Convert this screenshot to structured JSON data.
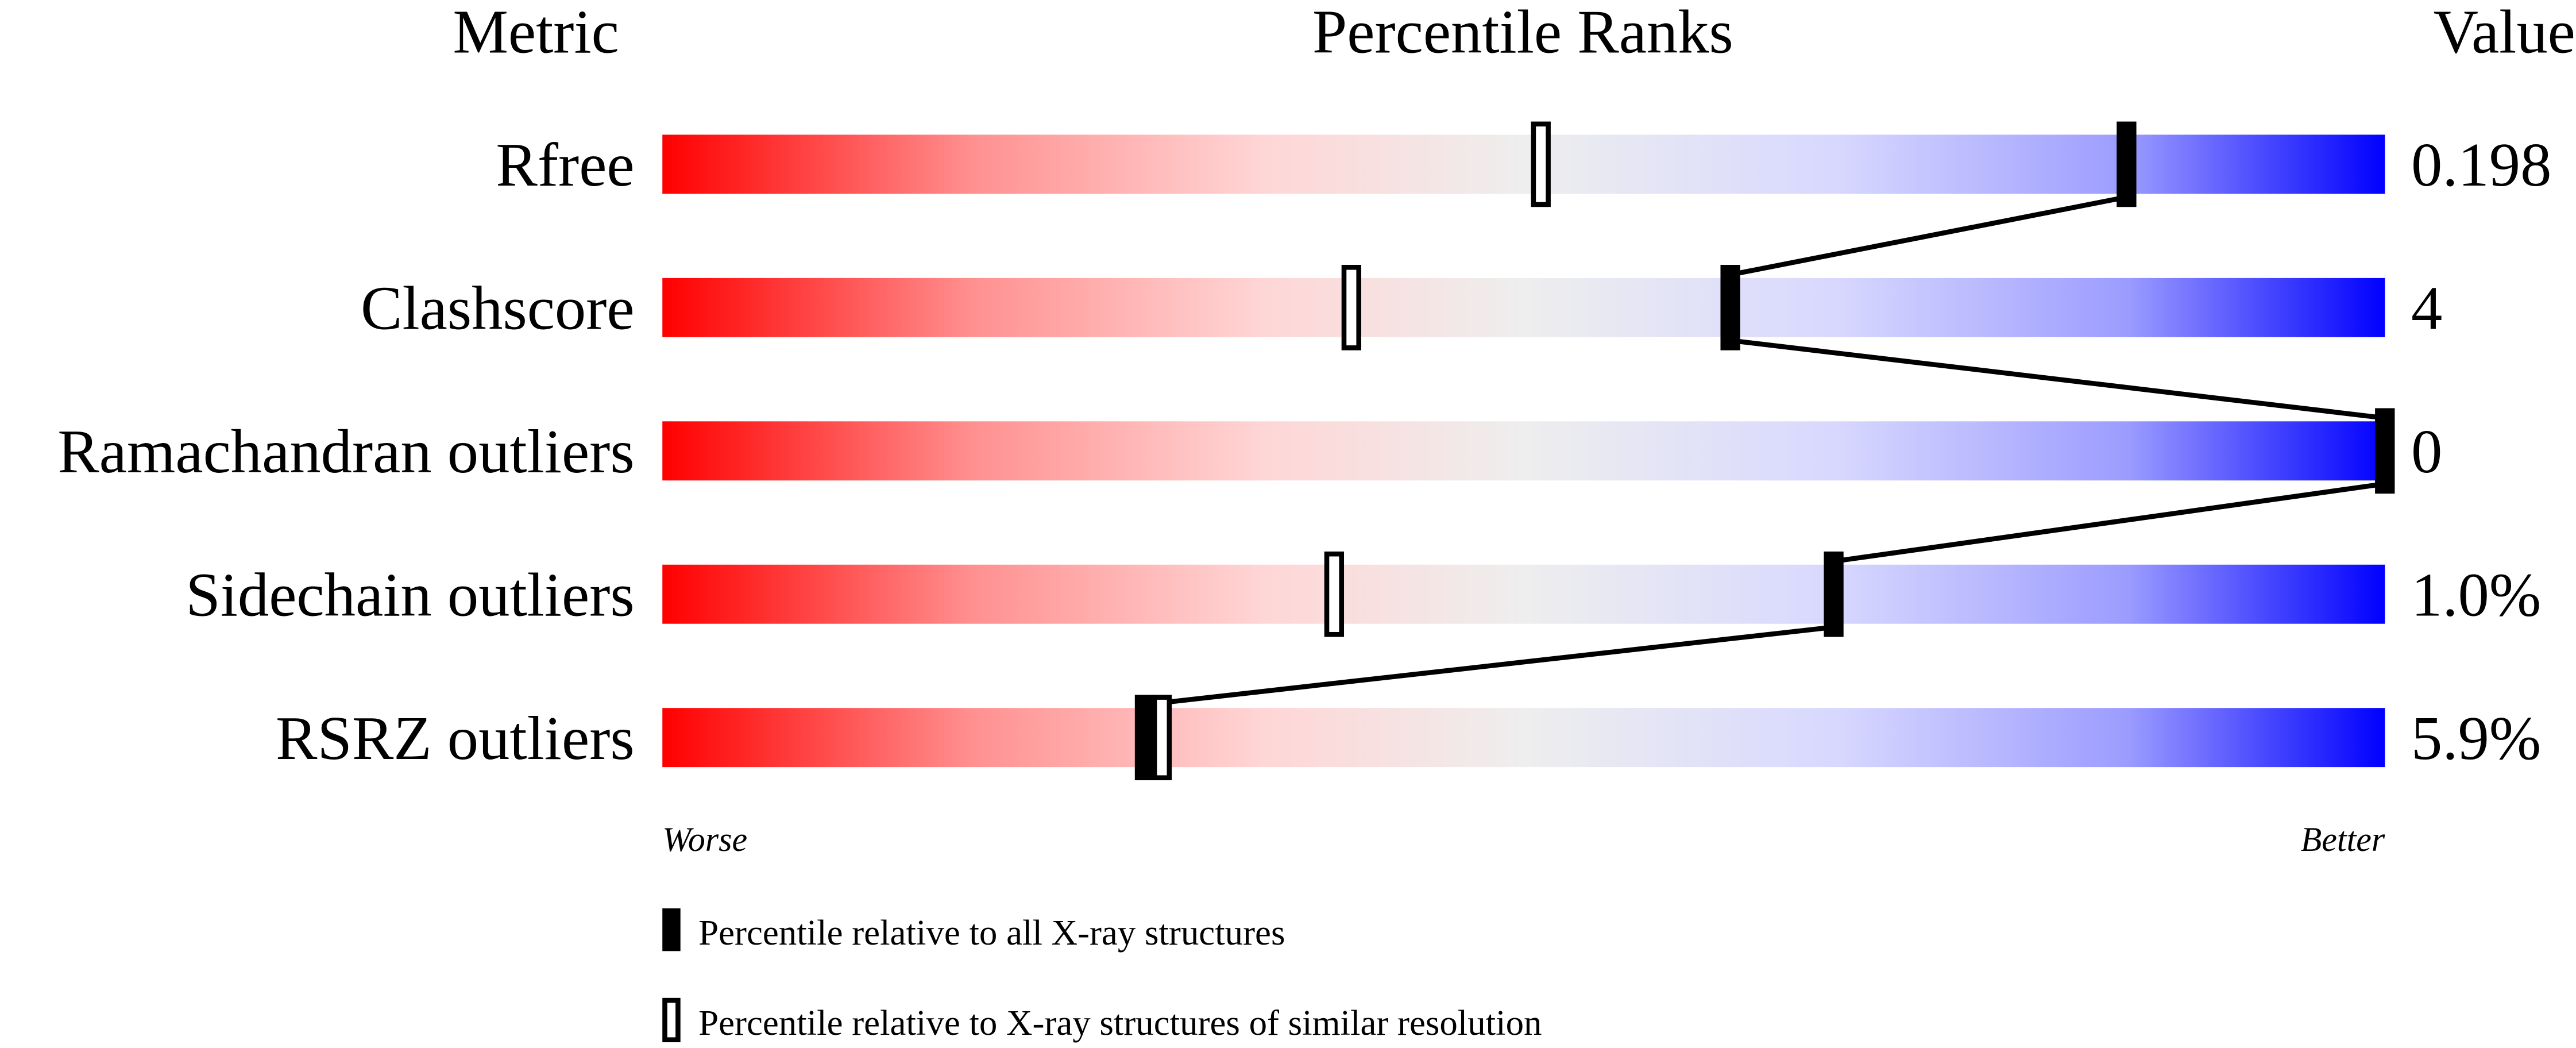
{
  "chart_data": {
    "type": "bar",
    "title": "Percentile Ranks",
    "column_headers": {
      "metric": "Metric",
      "ranks": "Percentile Ranks",
      "value": "Value"
    },
    "xlim": [
      0,
      100
    ],
    "axis_labels": {
      "left": "Worse",
      "right": "Better"
    },
    "categories": [
      "Rfree",
      "Clashscore",
      "Ramachandran outliers",
      "Sidechain outliers",
      "RSRZ outliers"
    ],
    "values": [
      "0.198",
      "4",
      "0",
      "1.0%",
      "5.9%"
    ],
    "series": [
      {
        "name": "Percentile relative to all X-ray structures",
        "marker": "filled",
        "percentiles": [
          85,
          62,
          100,
          68,
          28
        ]
      },
      {
        "name": "Percentile relative to X-ray structures of similar resolution",
        "marker": "open",
        "percentiles": [
          51,
          40,
          null,
          39,
          29
        ]
      }
    ],
    "gradient_colors": {
      "worse": "#ff0000",
      "middle": "#eeeeee",
      "better": "#0000ff"
    },
    "legend_position": "bottom"
  }
}
